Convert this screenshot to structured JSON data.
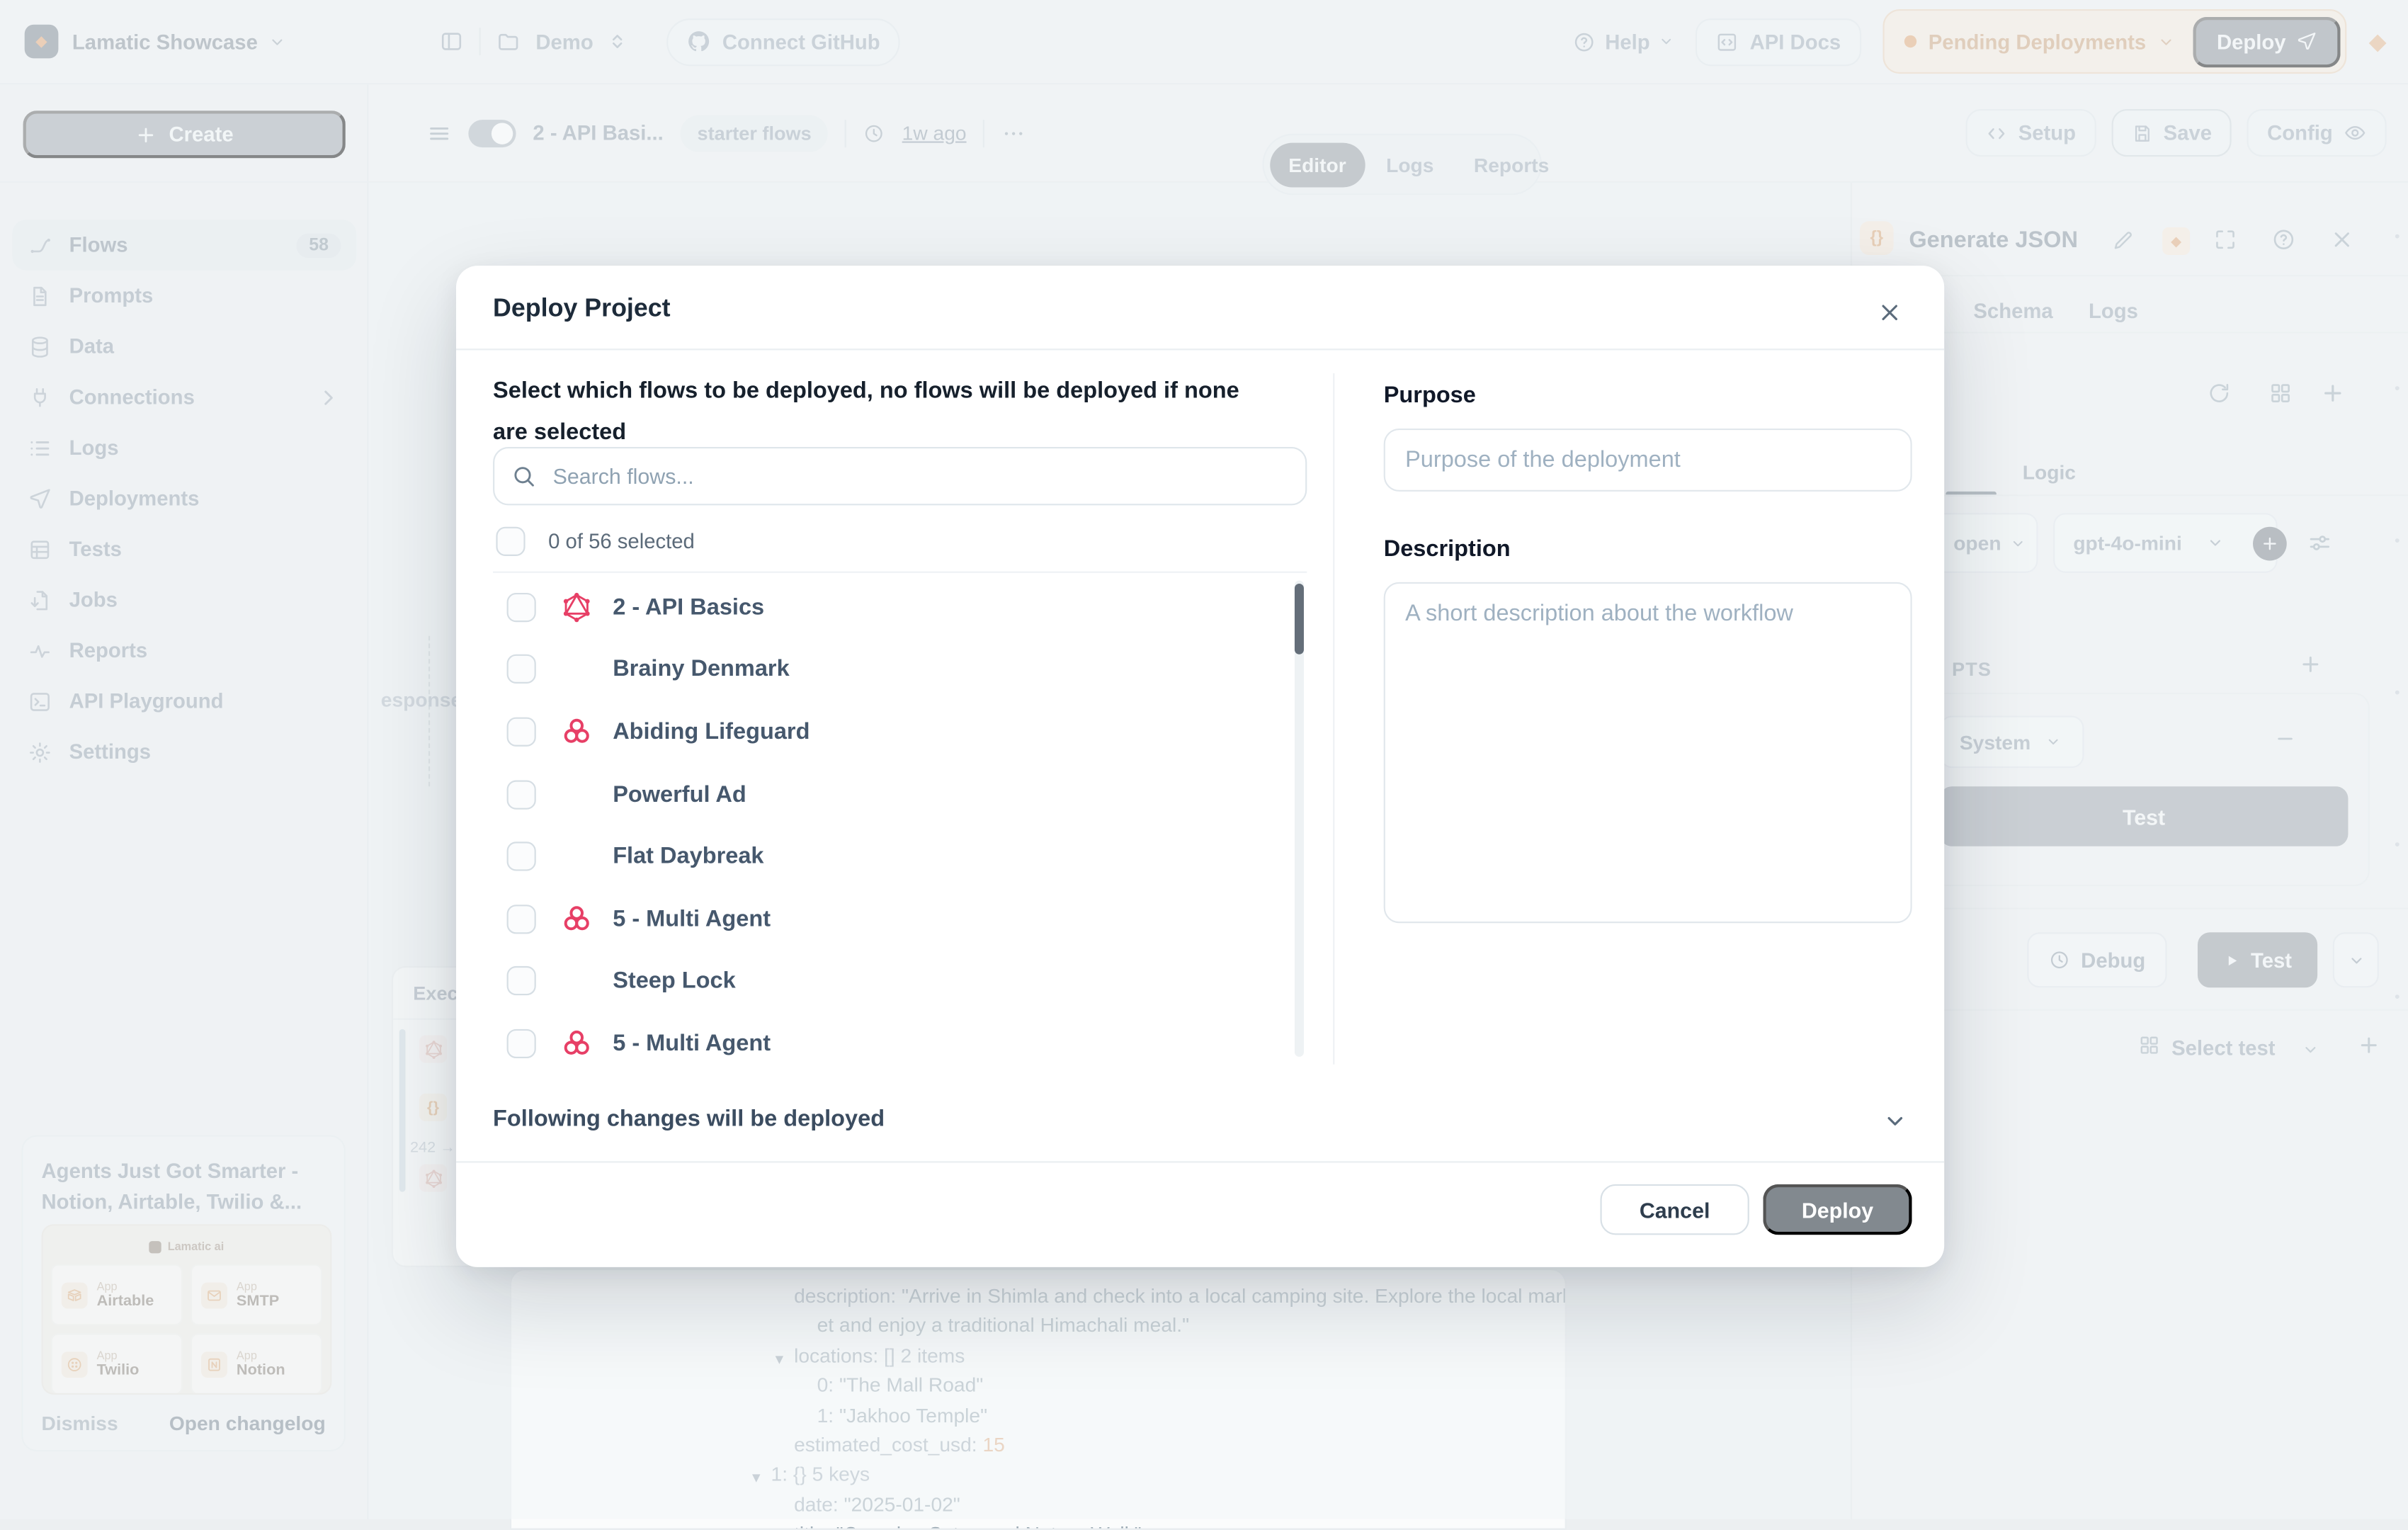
{
  "colors": {
    "graphql": "#e73f66",
    "grid": "#27a468",
    "knot": "#e73f66",
    "accent_orange": "#dd9f6e"
  },
  "topbar": {
    "workspace": "Lamatic Showcase",
    "project": "Demo",
    "connect_github": "Connect GitHub",
    "help": "Help",
    "api_docs": "API Docs",
    "pending_deployments": "Pending Deployments",
    "deploy": "Deploy"
  },
  "sidebar": {
    "create": "Create",
    "items": [
      {
        "label": "Flows",
        "icon": "route",
        "badge": "58",
        "active": true
      },
      {
        "label": "Prompts",
        "icon": "document"
      },
      {
        "label": "Data",
        "icon": "database"
      },
      {
        "label": "Connections",
        "icon": "plug",
        "chevron": true
      },
      {
        "label": "Logs",
        "icon": "list"
      },
      {
        "label": "Deployments",
        "icon": "send"
      },
      {
        "label": "Tests",
        "icon": "table"
      },
      {
        "label": "Jobs",
        "icon": "file-out"
      },
      {
        "label": "Reports",
        "icon": "activity"
      },
      {
        "label": "API Playground",
        "icon": "terminal"
      },
      {
        "label": "Settings",
        "icon": "gear"
      }
    ],
    "changelog": {
      "title": "Agents Just Got Smarter - Notion, Airtable, Twilio &...",
      "brand": "Lamatic ai",
      "apps": [
        {
          "type": "App",
          "name": "Airtable",
          "icon": "airtable"
        },
        {
          "type": "App",
          "name": "SMTP",
          "icon": "envelope"
        },
        {
          "type": "App",
          "name": "Twilio",
          "icon": "twilio"
        },
        {
          "type": "App",
          "name": "Notion",
          "icon": "notion"
        }
      ],
      "dismiss": "Dismiss",
      "open": "Open changelog"
    }
  },
  "flowbar": {
    "flow_name": "2 - API Basi...",
    "tag": "starter flows",
    "updated": "1w ago",
    "tabs": [
      "Editor",
      "Logs",
      "Reports"
    ],
    "active_tab": "Editor",
    "setup": "Setup",
    "save": "Save",
    "config": "Config"
  },
  "canvas": {
    "partial_node_label": "esponse"
  },
  "executions": {
    "title": "Exec",
    "badge": "242 →"
  },
  "node_panel": {
    "title": "Generate JSON",
    "tabs": [
      "Schema",
      "Logs"
    ],
    "subtab": "Logic",
    "provider": "open",
    "model": "gpt-4o-mini",
    "prompts_heading": "PTS",
    "role": "System",
    "test_button": "Test",
    "debug": "Debug",
    "run_test": "Test",
    "select_test": "Select test"
  },
  "json_viewer": {
    "lines": [
      {
        "depth": 1,
        "segments": [
          {
            "c": "k",
            "t": "description: "
          },
          {
            "c": "s",
            "t": "\"Arrive in Shimla and check into a local camping site. Explore the local mark"
          }
        ]
      },
      {
        "depth": 2,
        "segments": [
          {
            "c": "s",
            "t": "et and enjoy a traditional Himachali meal.\""
          }
        ]
      },
      {
        "depth": 1,
        "arrow": true,
        "segments": [
          {
            "c": "k",
            "t": "locations: "
          },
          {
            "c": "m",
            "t": "[] 2 items"
          }
        ]
      },
      {
        "depth": 2,
        "segments": [
          {
            "c": "k",
            "t": "0: "
          },
          {
            "c": "s",
            "t": "\"The Mall Road\""
          }
        ]
      },
      {
        "depth": 2,
        "segments": [
          {
            "c": "k",
            "t": "1: "
          },
          {
            "c": "s",
            "t": "\"Jakhoo Temple\""
          }
        ]
      },
      {
        "depth": 1,
        "segments": [
          {
            "c": "k",
            "t": "estimated_cost_usd: "
          },
          {
            "c": "n",
            "t": "15"
          }
        ]
      },
      {
        "depth": 0,
        "arrow": true,
        "segments": [
          {
            "c": "k",
            "t": "1: "
          },
          {
            "c": "m",
            "t": "{} 5 keys"
          }
        ]
      },
      {
        "depth": 1,
        "segments": [
          {
            "c": "k",
            "t": "date: "
          },
          {
            "c": "s",
            "t": "\"2025-01-02\""
          }
        ]
      },
      {
        "depth": 1,
        "segments": [
          {
            "c": "k",
            "t": "title: "
          },
          {
            "c": "s",
            "t": "\"Camping Setup and Nature Walk\""
          }
        ]
      }
    ]
  },
  "modal": {
    "title": "Deploy Project",
    "subtitle": "Select which flows to be deployed, no flows will be deployed if none are selected",
    "search_placeholder": "Search flows...",
    "selected_summary": "0 of 56 selected",
    "flows": [
      {
        "name": "2 - API Basics",
        "icon": "graphql"
      },
      {
        "name": "Brainy Denmark",
        "icon": "grid"
      },
      {
        "name": "Abiding Lifeguard",
        "icon": "knot"
      },
      {
        "name": "Powerful Ad",
        "icon": "grid"
      },
      {
        "name": "Flat Daybreak",
        "icon": "grid"
      },
      {
        "name": "5 - Multi Agent",
        "icon": "knot"
      },
      {
        "name": "Steep Lock",
        "icon": "grid"
      },
      {
        "name": "5 - Multi Agent",
        "icon": "knot"
      }
    ],
    "purpose_label": "Purpose",
    "purpose_placeholder": "Purpose of the deployment",
    "description_label": "Description",
    "description_placeholder": "A short description about the workflow",
    "changes_label": "Following changes will be deployed",
    "cancel": "Cancel",
    "deploy": "Deploy"
  }
}
